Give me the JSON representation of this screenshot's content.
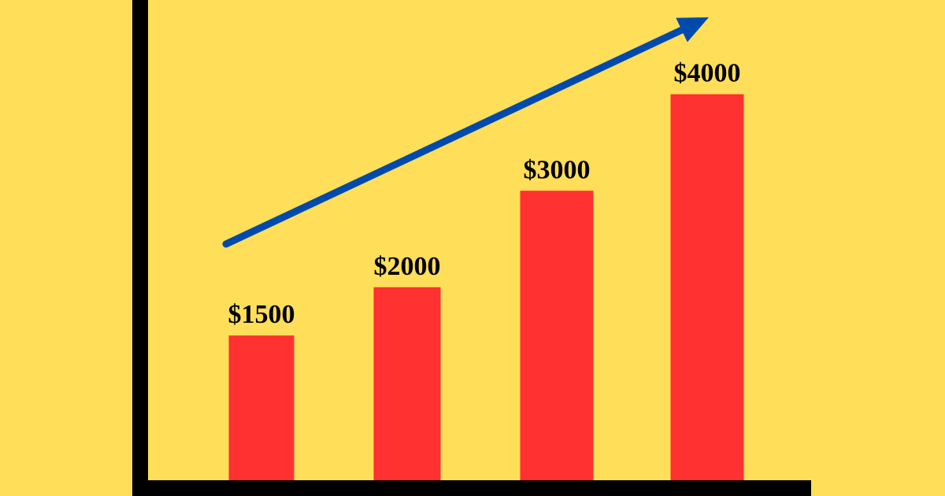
{
  "chart_data": {
    "type": "bar",
    "categories": [
      "",
      "",
      "",
      ""
    ],
    "values": [
      1500,
      2000,
      3000,
      4000
    ],
    "data_labels": [
      "$1500",
      "$2000",
      "$3000",
      "$4000"
    ],
    "title": "",
    "xlabel": "",
    "ylabel": "",
    "ylim": [
      0,
      4650
    ],
    "grid": false,
    "legend": "none",
    "trend_arrow": true
  },
  "colors": {
    "background": "#FFDE59",
    "bar": "#FF3131",
    "axis": "#000000",
    "trend_arrow": "#004AAD",
    "label": "#000000"
  }
}
